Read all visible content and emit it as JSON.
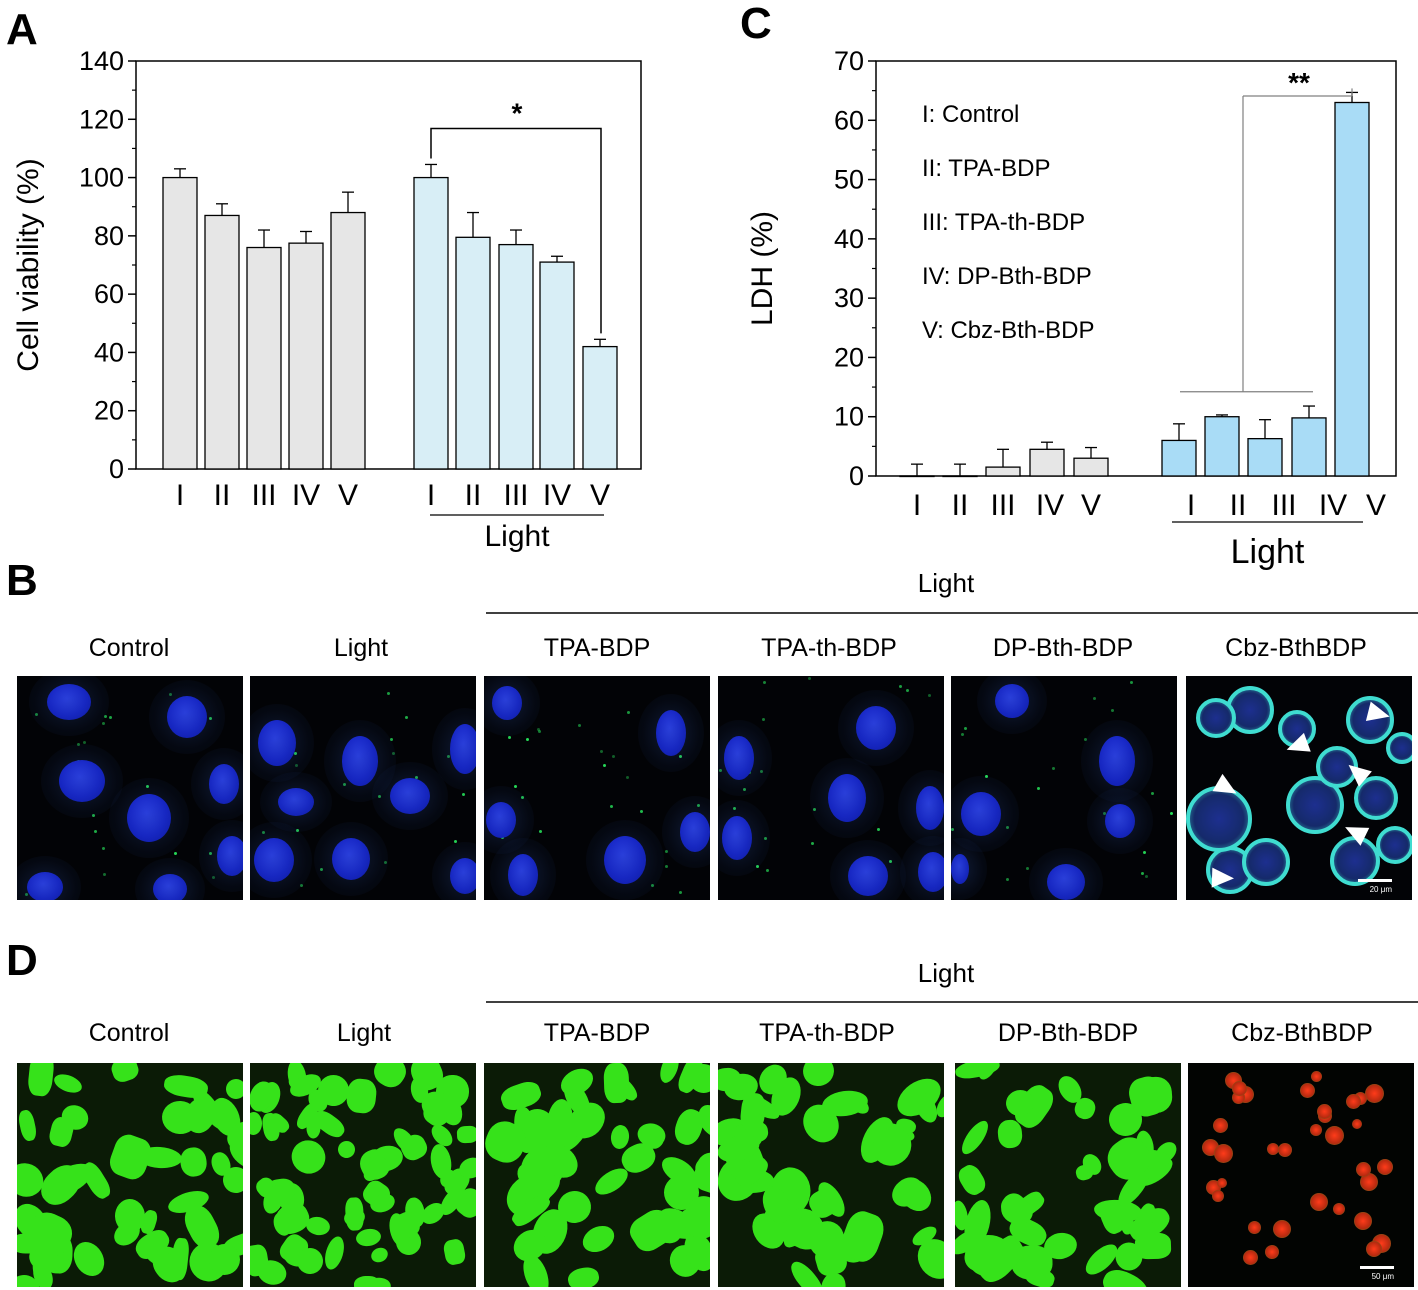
{
  "colors": {
    "dark_bar": "#e6e6e6",
    "light_bar": "#d8eef6",
    "light_bar_c": "#a9dcf6"
  },
  "panel_labels": {
    "A": "A",
    "B": "B",
    "C": "C",
    "D": "D"
  },
  "chart_data": [
    {
      "type": "bar",
      "ylabel": "Cell viability (%)",
      "ylim": [
        0,
        140
      ],
      "yticks": [
        0,
        20,
        40,
        60,
        80,
        100,
        120,
        140
      ],
      "groups": [
        {
          "name": "",
          "categories": [
            "I",
            "II",
            "III",
            "IV",
            "V"
          ],
          "values": [
            100,
            87,
            76,
            77.5,
            88
          ],
          "errors": [
            3,
            4,
            6,
            4,
            7
          ]
        },
        {
          "name": "Light",
          "categories": [
            "I",
            "II",
            "III",
            "IV",
            "V"
          ],
          "values": [
            100,
            79.5,
            77,
            71,
            42
          ],
          "errors": [
            4.5,
            8.5,
            5,
            2,
            2.5
          ]
        }
      ],
      "significance": {
        "label": "*",
        "from": "Light I",
        "to": "Light V"
      }
    },
    {
      "type": "bar",
      "ylabel": "LDH (%)",
      "ylim": [
        0,
        70
      ],
      "yticks": [
        0,
        10,
        20,
        30,
        40,
        50,
        60,
        70
      ],
      "groups": [
        {
          "name": "",
          "categories": [
            "I",
            "II",
            "III",
            "IV",
            "V"
          ],
          "values": [
            0,
            0,
            1.5,
            4.5,
            3
          ],
          "errors": [
            2,
            2,
            3,
            1.2,
            1.8
          ]
        },
        {
          "name": "Light",
          "categories": [
            "I",
            "II",
            "III",
            "IV",
            "V"
          ],
          "values": [
            6,
            10,
            6.3,
            9.8,
            63
          ],
          "errors": [
            2.8,
            0.3,
            3.2,
            2,
            1.7
          ]
        }
      ],
      "significance": {
        "label": "**",
        "from": "Light I–IV",
        "to": "Light V"
      },
      "legend": [
        "I: Control",
        "II: TPA-BDP",
        "III: TPA-th-BDP",
        "IV: DP-Bth-BDP",
        "V: Cbz-Bth-BDP"
      ]
    }
  ],
  "panel_B": {
    "light_header": "Light",
    "labels": [
      "Control",
      "Light",
      "TPA-BDP",
      "TPA-th-BDP",
      "DP-Bth-BDP",
      "Cbz-BthBDP"
    ],
    "scale_text": "20 μm"
  },
  "panel_D": {
    "light_header": "Light",
    "labels": [
      "Control",
      "Light",
      "TPA-BDP",
      "TPA-th-BDP",
      "DP-Bth-BDP",
      "Cbz-BthBDP"
    ],
    "scale_text": "50 μm"
  }
}
